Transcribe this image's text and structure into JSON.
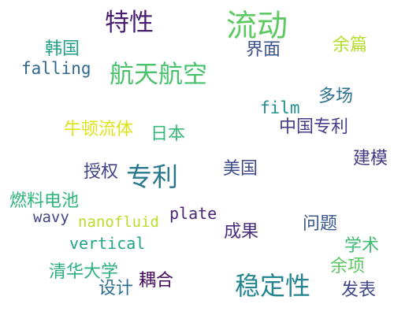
{
  "cloud": {
    "words": [
      {
        "text": "流动",
        "color": "#5ec962"
      },
      {
        "text": "特性",
        "color": "#481f70"
      },
      {
        "text": "航天航空",
        "color": "#4ac16d"
      },
      {
        "text": "专利",
        "color": "#2a788e"
      },
      {
        "text": "稳定性",
        "color": "#25858e"
      },
      {
        "text": "韩国",
        "color": "#1fa187"
      },
      {
        "text": "界面",
        "color": "#3b528b"
      },
      {
        "text": "余篇",
        "color": "#b5de2b"
      },
      {
        "text": "falling",
        "color": "#31688e"
      },
      {
        "text": "film",
        "color": "#21918c"
      },
      {
        "text": "多场",
        "color": "#2c728e"
      },
      {
        "text": "牛顿流体",
        "color": "#dde318"
      },
      {
        "text": "日本",
        "color": "#35b779"
      },
      {
        "text": "中国专利",
        "color": "#433e85"
      },
      {
        "text": "建模",
        "color": "#443983"
      },
      {
        "text": "授权",
        "color": "#404387"
      },
      {
        "text": "美国",
        "color": "#3e4989"
      },
      {
        "text": "燃料电池",
        "color": "#2fb47c"
      },
      {
        "text": "wavy",
        "color": "#414487"
      },
      {
        "text": "nanofluid",
        "color": "#b8de29"
      },
      {
        "text": "plate",
        "color": "#482576"
      },
      {
        "text": "问题",
        "color": "#39568c"
      },
      {
        "text": "vertical",
        "color": "#20a386"
      },
      {
        "text": "成果",
        "color": "#472d7b"
      },
      {
        "text": "学术",
        "color": "#3dbc74"
      },
      {
        "text": "余项",
        "color": "#5cc863"
      },
      {
        "text": "清华大学",
        "color": "#29af7f"
      },
      {
        "text": "耦合",
        "color": "#46085c"
      },
      {
        "text": "设计",
        "color": "#2e6e8e"
      },
      {
        "text": "发表",
        "color": "#3f4788"
      }
    ]
  }
}
